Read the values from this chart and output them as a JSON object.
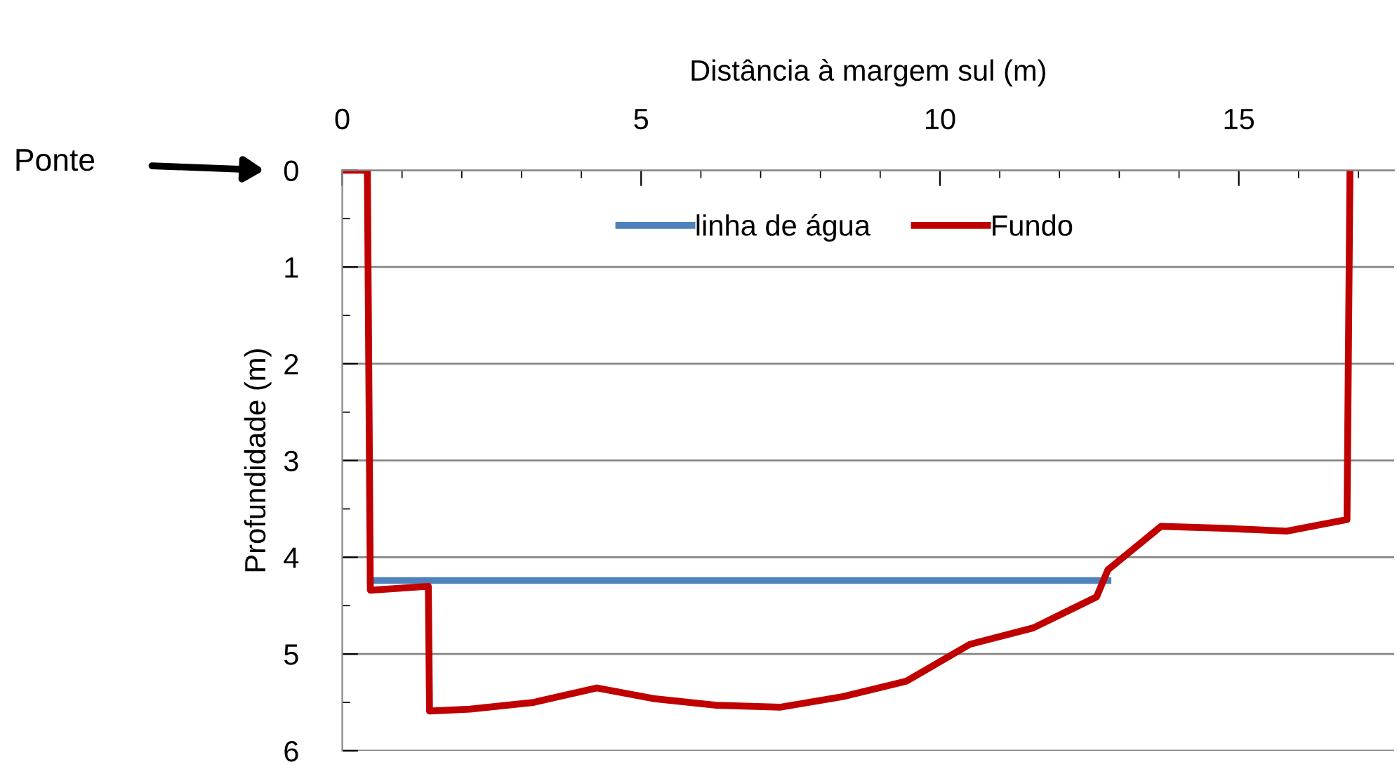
{
  "chart_data": {
    "type": "line",
    "xlabel": "Distância à margem sul (m)",
    "ylabel": "Profundidade (m)",
    "xlim": [
      0,
      17.6
    ],
    "xticks": [
      0,
      5,
      10,
      15
    ],
    "ylim": [
      6,
      0
    ],
    "yticks": [
      0,
      1,
      2,
      3,
      4,
      5,
      6
    ],
    "grid": "y",
    "legend": "top right",
    "marker": "none",
    "line_style": "solid",
    "annotations": [
      "Ponte"
    ],
    "series": [
      {
        "name": "linha de água",
        "color": "#4f81bd",
        "x": [
          0.47,
          12.81
        ],
        "values": [
          4.24,
          4.24
        ]
      },
      {
        "name": "Fundo",
        "color": "#c00000",
        "x": [
          0,
          0.42,
          0.47,
          1.44,
          1.46,
          2.14,
          3.2,
          4.26,
          5.2,
          6.26,
          7.32,
          8.38,
          9.44,
          10.5,
          11.56,
          12.62,
          12.81,
          13.7,
          14.74,
          15.8,
          16.81,
          16.86
        ],
        "values": [
          0,
          0,
          4.34,
          4.3,
          5.59,
          5.57,
          5.5,
          5.35,
          5.46,
          5.53,
          5.55,
          5.44,
          5.28,
          4.9,
          4.73,
          4.41,
          4.13,
          3.68,
          3.7,
          3.73,
          3.61,
          0
        ]
      }
    ]
  }
}
